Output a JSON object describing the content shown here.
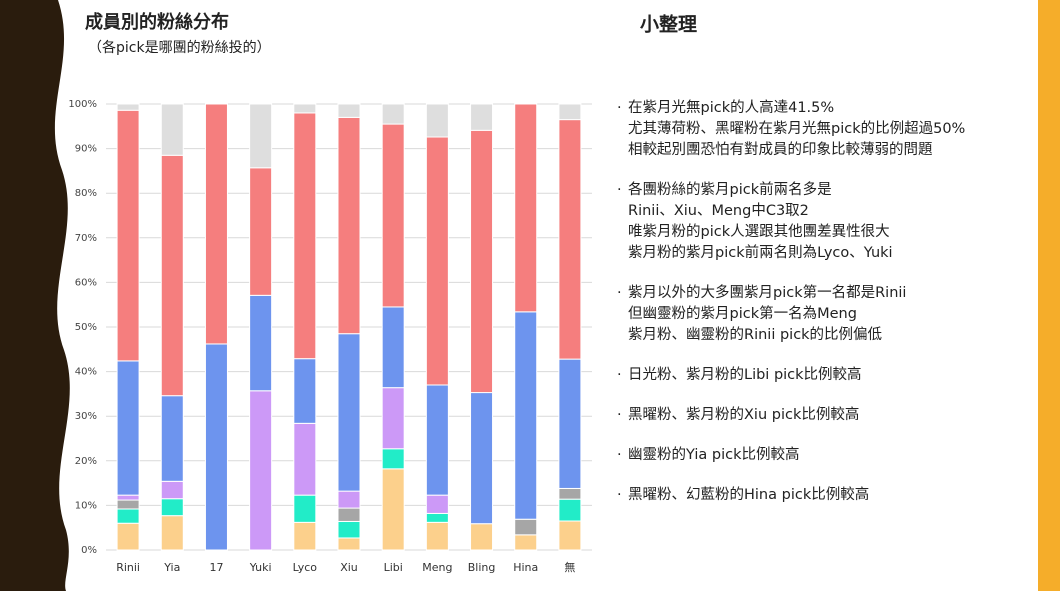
{
  "chart_data": {
    "type": "stacked_bar",
    "title": "成員別的粉絲分布",
    "subtitle": "（各pick是哪團的粉絲投的）",
    "categories": [
      "Rinii",
      "Yia",
      "17",
      "Yuki",
      "Lyco",
      "Xiu",
      "Libi",
      "Meng",
      "Bling",
      "Hina",
      "無"
    ],
    "series": [
      {
        "color": "#fcd08c",
        "values": [
          6,
          7.7,
          0,
          0,
          6.2,
          2.7,
          18.2,
          6.2,
          5.9,
          3.4,
          6.5
        ]
      },
      {
        "color": "#22ecc8",
        "values": [
          3.2,
          3.8,
          0,
          0,
          6.1,
          3.7,
          4.5,
          2,
          0,
          0,
          4.9
        ]
      },
      {
        "color": "#a6a6a6",
        "values": [
          2,
          0,
          0,
          0,
          0,
          3,
          0,
          0,
          0,
          3.5,
          2.4
        ]
      },
      {
        "color": "#cc99f7",
        "values": [
          1.1,
          3.9,
          0,
          35.7,
          16.1,
          3.8,
          13.7,
          4.1,
          0,
          0,
          0
        ]
      },
      {
        "color": "#6d94ee",
        "values": [
          30.1,
          19.2,
          46.2,
          21.4,
          14.5,
          35.3,
          18.1,
          24.7,
          29.4,
          46.5,
          29
        ]
      },
      {
        "color": "#f57e7e",
        "values": [
          56.2,
          53.9,
          53.8,
          28.6,
          55.1,
          48.5,
          41,
          55.6,
          58.8,
          46.6,
          53.7
        ]
      },
      {
        "color": "#dedede",
        "values": [
          1.4,
          11.5,
          0,
          14.3,
          2,
          3,
          4.5,
          7.4,
          5.9,
          0,
          3.5
        ]
      }
    ],
    "ylim": [
      0,
      100
    ],
    "yticks": [
      {
        "value": 0,
        "label": "0%"
      },
      {
        "value": 10,
        "label": "10%"
      },
      {
        "value": 20,
        "label": "20%"
      },
      {
        "value": 30,
        "label": "30%"
      },
      {
        "value": 40,
        "label": "40%"
      },
      {
        "value": 50,
        "label": "50%"
      },
      {
        "value": 60,
        "label": "60%"
      },
      {
        "value": 70,
        "label": "70%"
      },
      {
        "value": 80,
        "label": "80%"
      },
      {
        "value": 90,
        "label": "90%"
      },
      {
        "value": 100,
        "label": "100%"
      }
    ],
    "grid": true
  },
  "notes": {
    "title": "小整理",
    "items": [
      [
        "在紫月光無pick的人高達41.5%",
        "尤其薄荷粉、黑曜粉在紫月光無pick的比例超過50%",
        "相較起別團恐怕有對成員的印象比較薄弱的問題"
      ],
      [
        "各團粉絲的紫月pick前兩名多是",
        "Rinii、Xiu、Meng中C3取2",
        "唯紫月粉的pick人選跟其他團差異性很大",
        "紫月粉的紫月pick前兩名則為Lyco、Yuki"
      ],
      [
        "紫月以外的大多團紫月pick第一名都是Rinii",
        "但幽靈粉的紫月pick第一名為Meng",
        "紫月粉、幽靈粉的Rinii pick的比例偏低"
      ],
      [
        "日光粉、紫月粉的Libi pick比例較高"
      ],
      [
        "黑曜粉、紫月粉的Xiu pick比例較高"
      ],
      [
        "幽靈粉的Yia pick比例較高"
      ],
      [
        "黑曜粉、幻藍粉的Hina pick比例較高"
      ]
    ]
  }
}
